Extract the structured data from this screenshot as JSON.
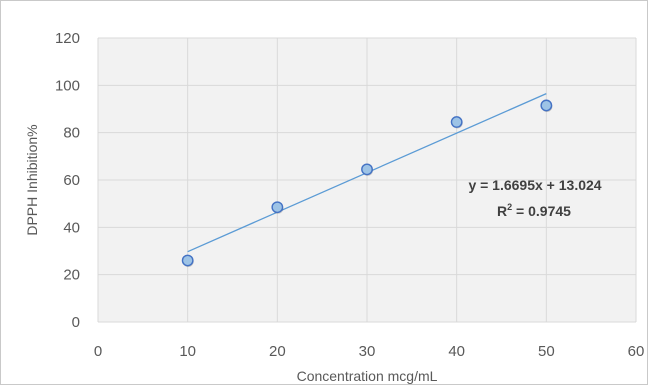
{
  "chart_data": {
    "type": "scatter",
    "title": "",
    "xlabel": "Concentration mcg/mL",
    "ylabel": "DPPH Inhibition%",
    "xlim": [
      0,
      60
    ],
    "ylim": [
      0,
      120
    ],
    "x_ticks": [
      0,
      10,
      20,
      30,
      40,
      50,
      60
    ],
    "y_ticks": [
      0,
      20,
      40,
      60,
      80,
      100,
      120
    ],
    "grid": true,
    "legend": "none",
    "series": [
      {
        "x": [
          10,
          20,
          30,
          40,
          50
        ],
        "y": [
          26,
          48.5,
          64.5,
          84.5,
          91.5
        ],
        "color": "#9dc3e6",
        "edge_color": "#4472c4"
      }
    ],
    "trendline": {
      "type": "linear",
      "slope": 1.6695,
      "intercept": 13.024,
      "x_range": [
        10,
        50
      ],
      "color": "#5b9bd5"
    },
    "annotations": {
      "equation": "y = 1.6695x + 13.024",
      "r2_label": "R",
      "r2_sup": "2",
      "r2_value": " = 0.9745"
    }
  }
}
